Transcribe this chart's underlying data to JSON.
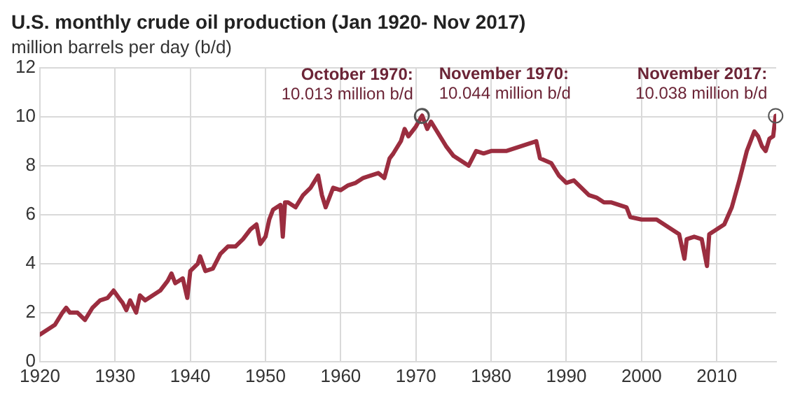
{
  "chart_data": {
    "type": "line",
    "title": "U.S. monthly crude oil production (Jan 1920- Nov 2017)",
    "subtitle": "million barrels per day (b/d)",
    "x": [
      1920,
      1921,
      1922,
      1923,
      1923.5,
      1924,
      1925,
      1926,
      1927,
      1928,
      1929,
      1929.8,
      1930.5,
      1931,
      1931.5,
      1932,
      1932.8,
      1933.3,
      1934,
      1935,
      1936,
      1937,
      1937.5,
      1938,
      1939,
      1939.6,
      1940,
      1941,
      1941.3,
      1942,
      1943,
      1944,
      1945,
      1946,
      1947,
      1948,
      1948.8,
      1949.3,
      1950,
      1950.5,
      1951,
      1952,
      1952.3,
      1952.6,
      1953,
      1954,
      1955,
      1956,
      1957,
      1957.5,
      1958,
      1959,
      1960,
      1961,
      1962,
      1963,
      1964,
      1965,
      1965.8,
      1966.5,
      1967,
      1968,
      1968.5,
      1969,
      1970,
      1970.75,
      1970.83,
      1971.5,
      1972,
      1973,
      1974,
      1975,
      1976,
      1977,
      1978,
      1979,
      1980,
      1982,
      1984,
      1985,
      1986,
      1986.5,
      1988,
      1989,
      1990,
      1991,
      1992,
      1993,
      1994,
      1995,
      1996,
      1997,
      1998,
      1998.5,
      2000,
      2001,
      2002,
      2003,
      2004,
      2005,
      2005.7,
      2006,
      2007,
      2008,
      2008.7,
      2009,
      2010,
      2011,
      2012,
      2013,
      2014,
      2015,
      2015.5,
      2016,
      2016.5,
      2017,
      2017.5,
      2017.83
    ],
    "series": [
      {
        "color": "#9b2d3f",
        "values": [
          1.1,
          1.3,
          1.5,
          2.0,
          2.2,
          2.0,
          2.0,
          1.7,
          2.2,
          2.5,
          2.6,
          2.9,
          2.6,
          2.4,
          2.1,
          2.5,
          2.0,
          2.7,
          2.5,
          2.7,
          2.9,
          3.3,
          3.6,
          3.2,
          3.4,
          2.6,
          3.7,
          4.0,
          4.3,
          3.7,
          3.8,
          4.4,
          4.7,
          4.7,
          5.0,
          5.4,
          5.6,
          4.8,
          5.1,
          5.8,
          6.2,
          6.4,
          5.1,
          6.5,
          6.5,
          6.3,
          6.8,
          7.1,
          7.6,
          6.8,
          6.3,
          7.1,
          7.0,
          7.2,
          7.3,
          7.5,
          7.6,
          7.7,
          7.5,
          8.3,
          8.5,
          9.0,
          9.5,
          9.2,
          9.6,
          10.013,
          10.044,
          9.5,
          9.8,
          9.3,
          8.8,
          8.4,
          8.2,
          8.0,
          8.6,
          8.5,
          8.6,
          8.6,
          8.8,
          8.9,
          9.0,
          8.3,
          8.1,
          7.6,
          7.3,
          7.4,
          7.1,
          6.8,
          6.7,
          6.5,
          6.5,
          6.4,
          6.3,
          5.9,
          5.8,
          5.8,
          5.8,
          5.6,
          5.4,
          5.2,
          4.2,
          5.0,
          5.1,
          5.0,
          3.9,
          5.2,
          5.4,
          5.6,
          6.3,
          7.4,
          8.6,
          9.4,
          9.2,
          8.8,
          8.6,
          9.1,
          9.2,
          10.038
        ]
      }
    ],
    "xlim": [
      1920,
      2017.9
    ],
    "xticks": [
      1920,
      1930,
      1940,
      1950,
      1960,
      1970,
      1980,
      1990,
      2000,
      2010
    ],
    "ylim": [
      0,
      12
    ],
    "yticks": [
      0,
      2,
      4,
      6,
      8,
      10,
      12
    ],
    "grid": true,
    "legend": false,
    "marker": "none",
    "line_style": "solid",
    "annotations": [
      {
        "text": "October 1970:\n10.013 million b/d",
        "x": 1970.75,
        "y": 10.013
      },
      {
        "text": "November 1970:\n10.044 million b/d",
        "x": 1970.83,
        "y": 10.044
      },
      {
        "text": "November 2017:\n10.038 million b/d",
        "x": 2017.83,
        "y": 10.038
      }
    ]
  }
}
